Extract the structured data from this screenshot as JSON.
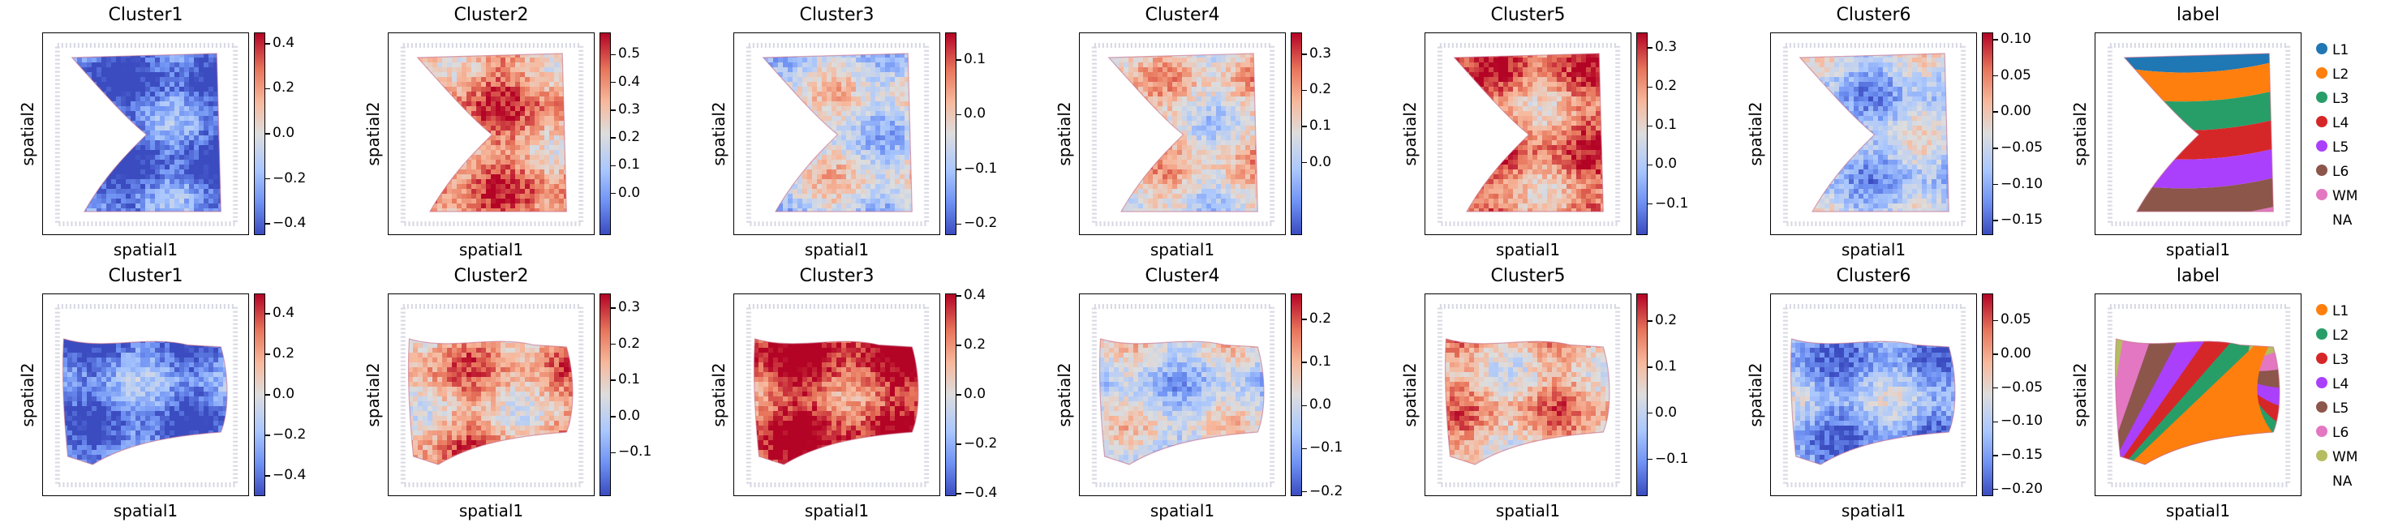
{
  "chart_data": [
    {
      "type": "heatmap",
      "rows": [
        {
          "panels": [
            {
              "title": "Cluster1",
              "xlabel": "spatial1",
              "ylabel": "spatial2",
              "kind": "continuous",
              "shape": "top",
              "tone": -0.8,
              "cbar_range": [
                -0.45,
                0.45
              ],
              "ticks": [
                -0.4,
                -0.2,
                0.0,
                0.2,
                0.4
              ],
              "tick_labels": [
                "−0.4",
                "−0.2",
                "0.0",
                "0.2",
                "0.4"
              ]
            },
            {
              "title": "Cluster2",
              "xlabel": "spatial1",
              "ylabel": "spatial2",
              "kind": "continuous",
              "shape": "top",
              "tone": 0.5,
              "cbar_range": [
                -0.15,
                0.58
              ],
              "ticks": [
                0.0,
                0.1,
                0.2,
                0.3,
                0.4,
                0.5
              ],
              "tick_labels": [
                "0.0",
                "0.1",
                "0.2",
                "0.3",
                "0.4",
                "0.5"
              ]
            },
            {
              "title": "Cluster3",
              "xlabel": "spatial1",
              "ylabel": "spatial2",
              "kind": "continuous",
              "shape": "top",
              "tone": -0.1,
              "cbar_range": [
                -0.22,
                0.15
              ],
              "ticks": [
                -0.2,
                -0.1,
                0.0,
                0.1
              ],
              "tick_labels": [
                "−0.2",
                "−0.1",
                "0.0",
                "0.1"
              ]
            },
            {
              "title": "Cluster4",
              "xlabel": "spatial1",
              "ylabel": "spatial2",
              "kind": "continuous",
              "shape": "top",
              "tone": 0.1,
              "cbar_range": [
                -0.2,
                0.36
              ],
              "ticks": [
                0.0,
                0.1,
                0.2,
                0.3
              ],
              "tick_labels": [
                "0.0",
                "0.1",
                "0.2",
                "0.3"
              ]
            },
            {
              "title": "Cluster5",
              "xlabel": "spatial1",
              "ylabel": "spatial2",
              "kind": "continuous",
              "shape": "top",
              "tone": 0.55,
              "cbar_range": [
                -0.18,
                0.34
              ],
              "ticks": [
                -0.1,
                0.0,
                0.1,
                0.2,
                0.3
              ],
              "tick_labels": [
                "−0.1",
                "0.0",
                "0.1",
                "0.2",
                "0.3"
              ]
            },
            {
              "title": "Cluster6",
              "xlabel": "spatial1",
              "ylabel": "spatial2",
              "kind": "continuous",
              "shape": "top",
              "tone": -0.3,
              "cbar_range": [
                -0.17,
                0.11
              ],
              "ticks": [
                -0.15,
                -0.1,
                -0.05,
                0.0,
                0.05,
                0.1
              ],
              "tick_labels": [
                "−0.15",
                "−0.10",
                "−0.05",
                "0.00",
                "0.05",
                "0.10"
              ]
            },
            {
              "title": "label",
              "xlabel": "spatial1",
              "ylabel": "spatial2",
              "kind": "categorical",
              "shape": "top",
              "legend": [
                {
                  "label": "L1",
                  "color": "#1f77b4"
                },
                {
                  "label": "L2",
                  "color": "#ff7f0e"
                },
                {
                  "label": "L3",
                  "color": "#279e68"
                },
                {
                  "label": "L4",
                  "color": "#d62728"
                },
                {
                  "label": "L5",
                  "color": "#aa40fc"
                },
                {
                  "label": "L6",
                  "color": "#8c564b"
                },
                {
                  "label": "WM",
                  "color": "#e377c2"
                },
                {
                  "label": "NA",
                  "color": ""
                }
              ]
            }
          ]
        },
        {
          "panels": [
            {
              "title": "Cluster1",
              "xlabel": "spatial1",
              "ylabel": "spatial2",
              "kind": "continuous",
              "shape": "bottom",
              "tone": -0.7,
              "cbar_range": [
                -0.5,
                0.5
              ],
              "ticks": [
                -0.4,
                -0.2,
                0.0,
                0.2,
                0.4
              ],
              "tick_labels": [
                "−0.4",
                "−0.2",
                "0.0",
                "0.2",
                "0.4"
              ]
            },
            {
              "title": "Cluster2",
              "xlabel": "spatial1",
              "ylabel": "spatial2",
              "kind": "continuous",
              "shape": "bottom",
              "tone": 0.35,
              "cbar_range": [
                -0.22,
                0.34
              ],
              "ticks": [
                -0.1,
                0.0,
                0.1,
                0.2,
                0.3
              ],
              "tick_labels": [
                "−0.1",
                "0.0",
                "0.1",
                "0.2",
                "0.3"
              ]
            },
            {
              "title": "Cluster3",
              "xlabel": "spatial1",
              "ylabel": "spatial2",
              "kind": "continuous",
              "shape": "bottom",
              "tone": 0.8,
              "cbar_range": [
                -0.41,
                0.41
              ],
              "ticks": [
                -0.4,
                -0.2,
                0.0,
                0.2,
                0.4
              ],
              "tick_labels": [
                "−0.4",
                "−0.2",
                "0.0",
                "0.2",
                "0.4"
              ]
            },
            {
              "title": "Cluster4",
              "xlabel": "spatial1",
              "ylabel": "spatial2",
              "kind": "continuous",
              "shape": "bottom",
              "tone": -0.15,
              "cbar_range": [
                -0.21,
                0.26
              ],
              "ticks": [
                -0.2,
                -0.1,
                0.0,
                0.1,
                0.2
              ],
              "tick_labels": [
                "−0.2",
                "−0.1",
                "0.0",
                "0.1",
                "0.2"
              ]
            },
            {
              "title": "Cluster5",
              "xlabel": "spatial1",
              "ylabel": "spatial2",
              "kind": "continuous",
              "shape": "bottom",
              "tone": 0.3,
              "cbar_range": [
                -0.18,
                0.26
              ],
              "ticks": [
                -0.1,
                0.0,
                0.1,
                0.2
              ],
              "tick_labels": [
                "−0.1",
                "0.0",
                "0.1",
                "0.2"
              ]
            },
            {
              "title": "Cluster6",
              "xlabel": "spatial1",
              "ylabel": "spatial2",
              "kind": "continuous",
              "shape": "bottom",
              "tone": -0.5,
              "cbar_range": [
                -0.21,
                0.09
              ],
              "ticks": [
                -0.2,
                -0.15,
                -0.1,
                -0.05,
                0.0,
                0.05
              ],
              "tick_labels": [
                "−0.20",
                "−0.15",
                "−0.10",
                "−0.05",
                "0.00",
                "0.05"
              ]
            },
            {
              "title": "label",
              "xlabel": "spatial1",
              "ylabel": "spatial2",
              "kind": "categorical",
              "shape": "bottom",
              "legend": [
                {
                  "label": "L1",
                  "color": "#ff7f0e"
                },
                {
                  "label": "L2",
                  "color": "#279e68"
                },
                {
                  "label": "L3",
                  "color": "#d62728"
                },
                {
                  "label": "L4",
                  "color": "#aa40fc"
                },
                {
                  "label": "L5",
                  "color": "#8c564b"
                },
                {
                  "label": "L6",
                  "color": "#e377c2"
                },
                {
                  "label": "WM",
                  "color": "#b5bd61"
                },
                {
                  "label": "NA",
                  "color": ""
                }
              ]
            }
          ]
        }
      ]
    }
  ]
}
